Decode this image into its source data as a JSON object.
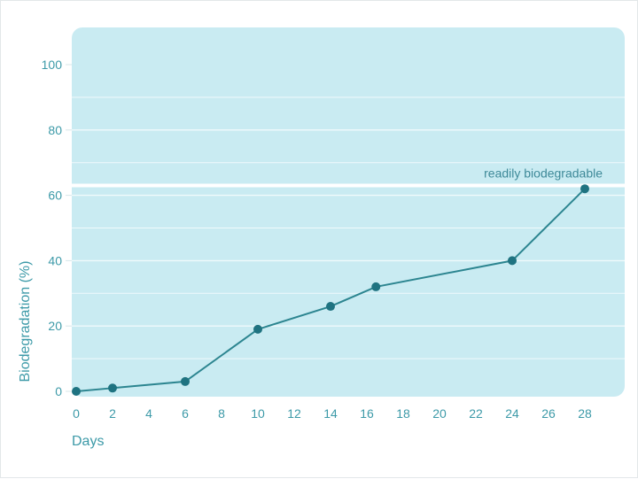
{
  "chart_data": {
    "type": "line",
    "xlabel": "Days",
    "ylabel": "Biodegradation (%)",
    "x_ticks": [
      "0",
      "2",
      "4",
      "6",
      "8",
      "10",
      "12",
      "14",
      "16",
      "18",
      "20",
      "22",
      "24",
      "26",
      "28"
    ],
    "y_ticks": [
      "0",
      "20",
      "40",
      "60",
      "80",
      "100"
    ],
    "xlim": [
      0,
      28
    ],
    "ylim": [
      0,
      100
    ],
    "grid": true,
    "series": [
      {
        "x": [
          0,
          2,
          6,
          10,
          14,
          16.5,
          24,
          28
        ],
        "y": [
          0,
          1,
          3,
          19,
          26,
          32,
          40,
          62
        ]
      }
    ],
    "reference_line": {
      "y": 63,
      "label": "readily biodegradable"
    },
    "colors": {
      "plot_background": "#c9ebf2",
      "gridline": "#f0fafc",
      "line": "#2c8590",
      "marker": "#1f7381",
      "reference_line": "#ffffff",
      "text": "#3d9aa8"
    }
  }
}
